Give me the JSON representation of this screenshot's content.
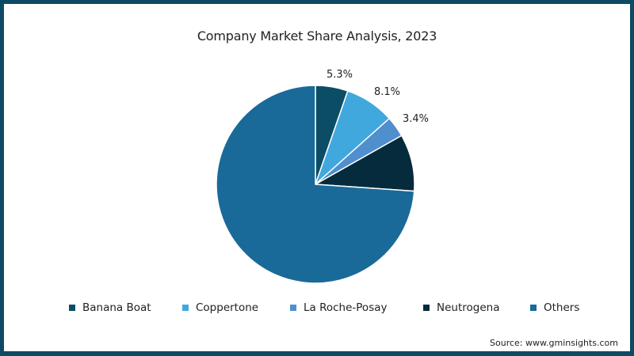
{
  "chart_data": {
    "type": "pie",
    "title": "Company Market Share Analysis, 2023",
    "categories": [
      "Banana Boat",
      "Coppertone",
      "La Roche-Posay",
      "Neutrogena",
      "Others"
    ],
    "values": [
      5.3,
      8.1,
      3.4,
      9.3,
      73.9
    ],
    "data_labels": [
      "5.3%",
      "8.1%",
      "3.4%",
      "",
      ""
    ],
    "colors": [
      "#0b4d66",
      "#41a8de",
      "#4f8fce",
      "#062b3d",
      "#196a99"
    ],
    "legend_position": "bottom",
    "start_angle_deg": 0,
    "direction": "clockwise"
  },
  "title": "Company Market Share Analysis, 2023",
  "labels": {
    "banana_boat": "5.3%",
    "coppertone": "8.1%",
    "la_roche_posay": "3.4%"
  },
  "legend": [
    {
      "label": "Banana Boat",
      "color": "#0b4d66"
    },
    {
      "label": "Coppertone",
      "color": "#41a8de"
    },
    {
      "label": "La Roche-Posay",
      "color": "#4f8fce"
    },
    {
      "label": "Neutrogena",
      "color": "#062b3d"
    },
    {
      "label": "Others",
      "color": "#196a99"
    }
  ],
  "source": "Source: www.gminsights.com",
  "frame_color": "#0d4a63"
}
